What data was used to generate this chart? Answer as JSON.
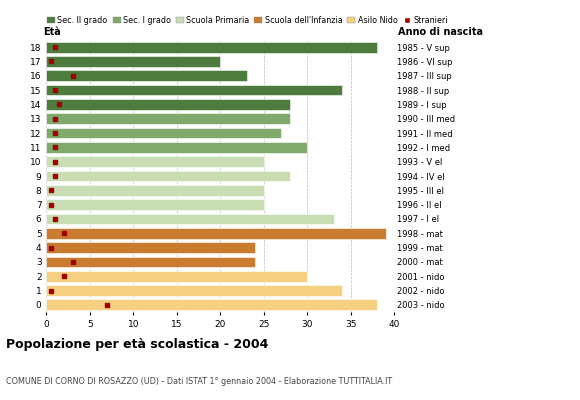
{
  "ages": [
    18,
    17,
    16,
    15,
    14,
    13,
    12,
    11,
    10,
    9,
    8,
    7,
    6,
    5,
    4,
    3,
    2,
    1,
    0
  ],
  "bar_values": [
    38,
    20,
    23,
    34,
    28,
    28,
    27,
    30,
    25,
    28,
    25,
    25,
    33,
    39,
    24,
    24,
    30,
    34,
    38
  ],
  "bar_colors": [
    "#4e7c3f",
    "#4e7c3f",
    "#4e7c3f",
    "#4e7c3f",
    "#4e7c3f",
    "#7faa6b",
    "#7faa6b",
    "#7faa6b",
    "#c8ddb4",
    "#c8ddb4",
    "#c8ddb4",
    "#c8ddb4",
    "#c8ddb4",
    "#c97c30",
    "#c97c30",
    "#c97c30",
    "#f5d080",
    "#f5d080",
    "#f5d080"
  ],
  "stranieri_x": [
    1.0,
    0.5,
    3.0,
    1.0,
    1.5,
    1.0,
    1.0,
    1.0,
    1.0,
    1.0,
    0.5,
    0.5,
    1.0,
    2.0,
    0.5,
    3.0,
    2.0,
    0.5,
    7.0
  ],
  "right_labels": [
    "1985 - V sup",
    "1986 - VI sup",
    "1987 - III sup",
    "1988 - II sup",
    "1989 - I sup",
    "1990 - III med",
    "1991 - II med",
    "1992 - I med",
    "1993 - V el",
    "1994 - IV el",
    "1995 - III el",
    "1996 - II el",
    "1997 - I el",
    "1998 - mat",
    "1999 - mat",
    "2000 - mat",
    "2001 - nido",
    "2002 - nido",
    "2003 - nido"
  ],
  "legend_labels": [
    "Sec. II grado",
    "Sec. I grado",
    "Scuola Primaria",
    "Scuola dell'Infanzia",
    "Asilo Nido",
    "Stranieri"
  ],
  "legend_colors": [
    "#4e7c3f",
    "#7faa6b",
    "#c8ddb4",
    "#c97c30",
    "#f5d080",
    "#a00000"
  ],
  "title": "Popolazione per età scolastica - 2004",
  "subtitle": "COMUNE DI CORNO DI ROSAZZO (UD) - Dati ISTAT 1° gennaio 2004 - Elaborazione TUTTITALIA.IT",
  "xlabel_eta": "Età",
  "xlabel_anno": "Anno di nascita",
  "xlim": [
    0,
    40
  ],
  "background_color": "#ffffff",
  "stranieri_color": "#a00000",
  "grid_color": "#bbbbbb"
}
